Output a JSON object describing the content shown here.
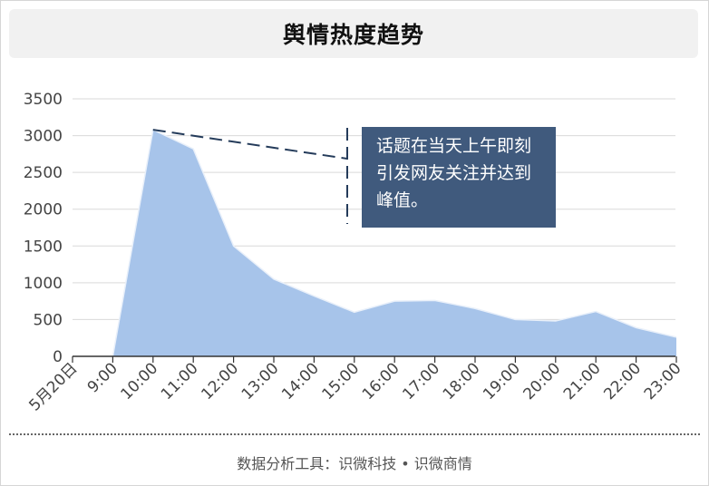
{
  "header": {
    "title": "舆情热度趋势"
  },
  "annotation": {
    "text": "话题在当天上午即刻引发网友关注并达到峰值。"
  },
  "footer": {
    "source": "数据分析工具：识微科技 • 识微商情"
  },
  "colors": {
    "area": "#a7c4ea",
    "annotation_bg": "#405a7d",
    "annotation_line": "#243b5a",
    "grid": "#d9d9d9",
    "axis": "#333333"
  },
  "chart_data": {
    "type": "area",
    "title": "舆情热度趋势",
    "categories": [
      "5月20日",
      "9:00",
      "10:00",
      "11:00",
      "12:00",
      "13:00",
      "14:00",
      "15:00",
      "16:00",
      "17:00",
      "18:00",
      "19:00",
      "20:00",
      "21:00",
      "22:00",
      "23:00"
    ],
    "values": [
      0,
      0,
      3080,
      2820,
      1500,
      1050,
      820,
      600,
      750,
      760,
      650,
      500,
      480,
      610,
      390,
      260
    ],
    "ylim": [
      0,
      3500
    ],
    "yticks": [
      0,
      500,
      1000,
      1500,
      2000,
      2500,
      3000,
      3500
    ],
    "grid": true,
    "legend": "none"
  }
}
